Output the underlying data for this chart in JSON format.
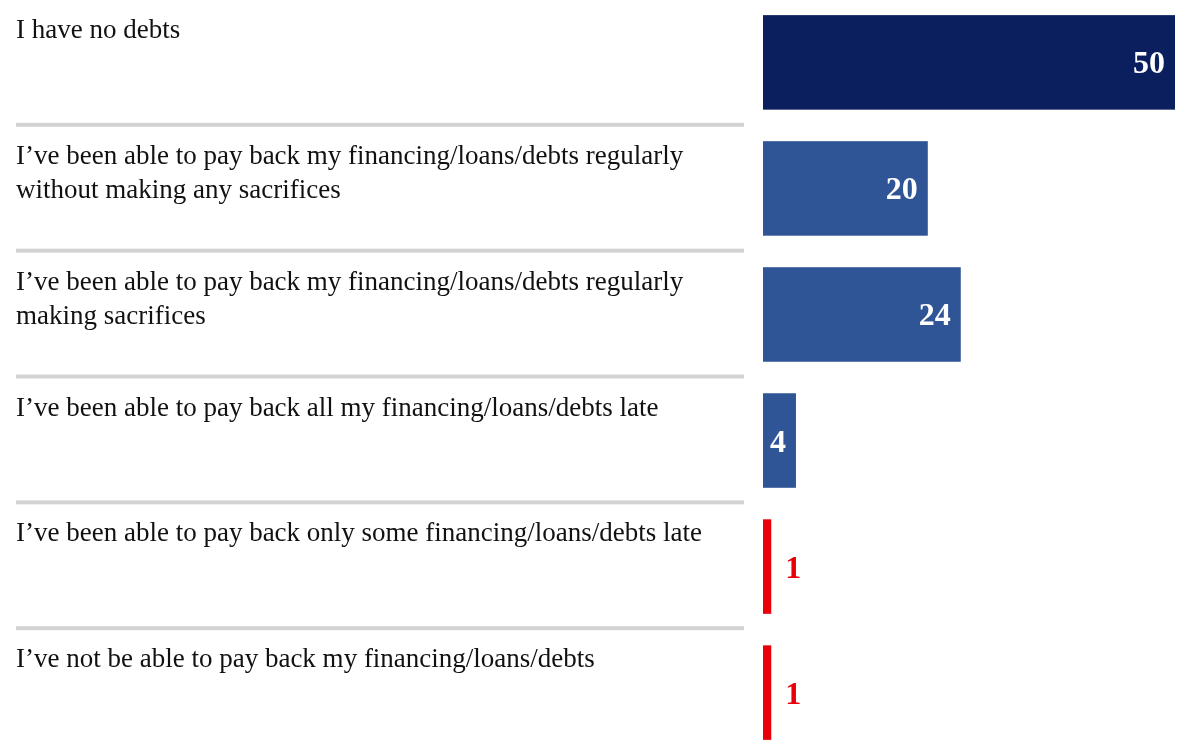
{
  "chart_data": {
    "type": "bar",
    "orientation": "horizontal",
    "categories": [
      "I have no debts",
      "I’ve been able to pay back my financing/loans/debts regularly without making any sacrifices",
      "I’ve been able to pay back my financing/loans/debts regularly making sacrifices",
      "I’ve been able to pay back all my financing/loans/debts late",
      "I’ve been able to pay back only some financing/loans/debts late",
      "I’ve not be able to pay back my financing/loans/debts"
    ],
    "values": [
      50,
      20,
      24,
      4,
      1,
      1
    ],
    "colors": [
      "#0b1f5e",
      "#2f5597",
      "#2f5597",
      "#2f5597",
      "#e8000b",
      "#e8000b"
    ],
    "xlim": [
      0,
      50
    ],
    "tick_labels": "y",
    "data_labels": true
  }
}
